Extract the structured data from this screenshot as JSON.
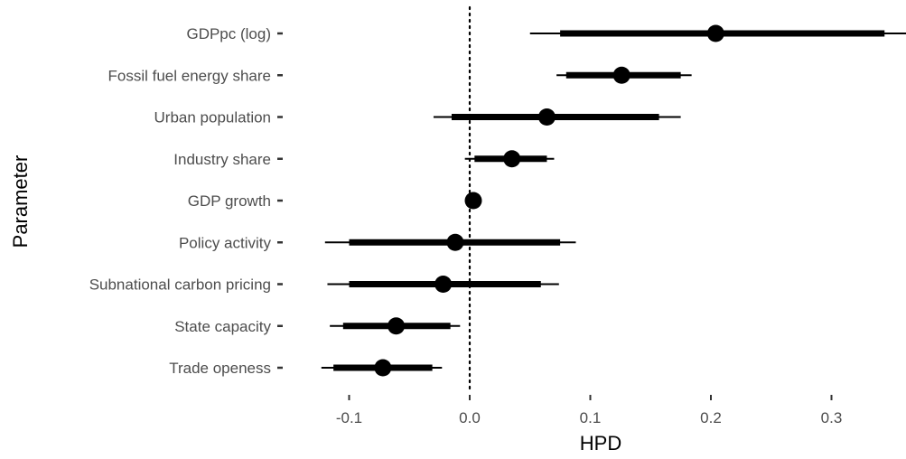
{
  "chart_data": {
    "type": "scatter",
    "subtype": "interval-plot",
    "xlabel": "HPD",
    "ylabel": "Parameter",
    "xlim": [
      -0.135,
      0.365
    ],
    "xticks": [
      -0.1,
      0.0,
      0.1,
      0.2,
      0.3
    ],
    "xtick_labels": [
      "-0.1",
      "0.0",
      "0.1",
      "0.2",
      "0.3"
    ],
    "reference_line": 0,
    "grid": false,
    "parameters": [
      {
        "label": "GDPpc (log)",
        "estimate": 0.204,
        "inner": [
          0.075,
          0.344
        ],
        "outer": [
          0.05,
          0.365
        ]
      },
      {
        "label": "Fossil fuel energy share",
        "estimate": 0.126,
        "inner": [
          0.08,
          0.175
        ],
        "outer": [
          0.072,
          0.184
        ]
      },
      {
        "label": "Urban population",
        "estimate": 0.064,
        "inner": [
          -0.015,
          0.157
        ],
        "outer": [
          -0.03,
          0.175
        ]
      },
      {
        "label": "Industry share",
        "estimate": 0.035,
        "inner": [
          0.004,
          0.064
        ],
        "outer": [
          -0.004,
          0.07
        ]
      },
      {
        "label": "GDP growth",
        "estimate": 0.003,
        "inner": [
          0.0,
          0.006
        ],
        "outer": [
          -0.001,
          0.007
        ]
      },
      {
        "label": "Policy activity",
        "estimate": -0.012,
        "inner": [
          -0.1,
          0.075
        ],
        "outer": [
          -0.12,
          0.088
        ]
      },
      {
        "label": "Subnational carbon pricing",
        "estimate": -0.022,
        "inner": [
          -0.1,
          0.059
        ],
        "outer": [
          -0.118,
          0.074
        ]
      },
      {
        "label": "State capacity",
        "estimate": -0.061,
        "inner": [
          -0.105,
          -0.016
        ],
        "outer": [
          -0.116,
          -0.008
        ]
      },
      {
        "label": "Trade openess",
        "estimate": -0.072,
        "inner": [
          -0.113,
          -0.031
        ],
        "outer": [
          -0.123,
          -0.023
        ]
      }
    ]
  }
}
